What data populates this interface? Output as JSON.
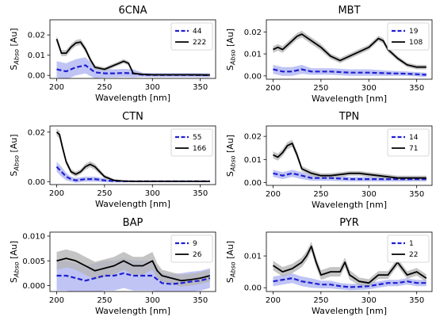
{
  "colors": {
    "mean_a": "#1f1fd1",
    "band_a": "#aab0f2",
    "mean_b": "#000000",
    "band_b": "#b5b5b5"
  },
  "chart_data": [
    {
      "type": "line",
      "title": "6CNA",
      "xlabel": "Wavelength [nm]",
      "ylabel": "S",
      "ylabel_sub": "Abso",
      "ylabel_unit": " [Au]",
      "xlim": [
        193,
        366
      ],
      "ylim": [
        -0.0015,
        0.0275
      ],
      "xticks": [
        200,
        250,
        300,
        350
      ],
      "yticks": [
        0.0,
        0.01,
        0.02
      ],
      "ytick_labels": [
        "0.00",
        "0.01",
        "0.02"
      ],
      "legend_position": "upper right",
      "series": [
        {
          "name": "44",
          "style": "dashed",
          "color": "#1f1fd1",
          "x": [
            200,
            210,
            220,
            230,
            240,
            250,
            260,
            270,
            280,
            290,
            300,
            320,
            340,
            360
          ],
          "y": [
            0.003,
            0.002,
            0.004,
            0.005,
            0.0015,
            0.001,
            0.001,
            0.0012,
            0.001,
            0.0003,
            0.0002,
            0.0002,
            0.0002,
            0.0001
          ],
          "band": [
            0.004,
            0.004,
            0.004,
            0.004,
            0.003,
            0.002,
            0.002,
            0.002,
            0.002,
            0.001,
            0.001,
            0.001,
            0.001,
            0.001
          ]
        },
        {
          "name": "222",
          "style": "solid",
          "color": "#000000",
          "x": [
            200,
            205,
            210,
            215,
            220,
            225,
            230,
            235,
            240,
            250,
            260,
            265,
            270,
            275,
            280,
            290,
            300,
            320,
            340,
            360
          ],
          "y": [
            0.018,
            0.011,
            0.011,
            0.014,
            0.016,
            0.0165,
            0.013,
            0.008,
            0.004,
            0.003,
            0.005,
            0.006,
            0.007,
            0.006,
            0.001,
            0.0005,
            0.0003,
            0.0003,
            0.0003,
            0.0002
          ],
          "band": [
            0.0015,
            0.0015,
            0.0015,
            0.0015,
            0.0015,
            0.0015,
            0.0015,
            0.0012,
            0.001,
            0.001,
            0.001,
            0.001,
            0.001,
            0.001,
            0.0008,
            0.0005,
            0.0005,
            0.0005,
            0.0005,
            0.0005
          ]
        }
      ]
    },
    {
      "type": "line",
      "title": "MBT",
      "xlabel": "Wavelength [nm]",
      "ylabel": "S",
      "ylabel_sub": "Abso",
      "ylabel_unit": " [Au]",
      "xlim": [
        193,
        366
      ],
      "ylim": [
        -0.0015,
        0.0255
      ],
      "xticks": [
        200,
        250,
        300,
        350
      ],
      "yticks": [
        0.0,
        0.01,
        0.02
      ],
      "ytick_labels": [
        "0.00",
        "0.01",
        "0.02"
      ],
      "legend_position": "upper right",
      "series": [
        {
          "name": "19",
          "style": "dashed",
          "color": "#1f1fd1",
          "x": [
            200,
            210,
            220,
            230,
            240,
            250,
            260,
            280,
            300,
            320,
            340,
            360
          ],
          "y": [
            0.003,
            0.002,
            0.002,
            0.003,
            0.002,
            0.002,
            0.002,
            0.0015,
            0.0015,
            0.0012,
            0.001,
            0.0005
          ],
          "band": [
            0.002,
            0.002,
            0.002,
            0.002,
            0.0015,
            0.0015,
            0.0015,
            0.0015,
            0.0015,
            0.0012,
            0.001,
            0.001
          ]
        },
        {
          "name": "108",
          "style": "solid",
          "color": "#000000",
          "x": [
            200,
            205,
            210,
            215,
            220,
            225,
            230,
            240,
            250,
            260,
            270,
            280,
            290,
            300,
            305,
            310,
            315,
            320,
            330,
            340,
            350,
            360
          ],
          "y": [
            0.012,
            0.013,
            0.012,
            0.014,
            0.016,
            0.018,
            0.019,
            0.016,
            0.013,
            0.009,
            0.007,
            0.009,
            0.011,
            0.013,
            0.015,
            0.017,
            0.016,
            0.012,
            0.008,
            0.005,
            0.004,
            0.004
          ],
          "band": [
            0.0015,
            0.0015,
            0.0015,
            0.0015,
            0.0015,
            0.0015,
            0.0015,
            0.0015,
            0.0015,
            0.0012,
            0.0012,
            0.0012,
            0.0012,
            0.0012,
            0.0012,
            0.0012,
            0.0012,
            0.0012,
            0.001,
            0.001,
            0.001,
            0.001
          ]
        }
      ]
    },
    {
      "type": "line",
      "title": "CTN",
      "xlabel": "Wavelength [nm]",
      "ylabel": "S",
      "ylabel_sub": "Abso",
      "ylabel_unit": " [Au]",
      "xlim": [
        193,
        366
      ],
      "ylim": [
        -0.0012,
        0.0225
      ],
      "xticks": [
        200,
        250,
        300,
        350
      ],
      "yticks": [
        0.0,
        0.02
      ],
      "ytick_labels": [
        "0.00",
        "0.02"
      ],
      "legend_position": "upper right",
      "series": [
        {
          "name": "55",
          "style": "dashed",
          "color": "#1f1fd1",
          "x": [
            200,
            205,
            210,
            215,
            220,
            230,
            240,
            250,
            260,
            280,
            300,
            320,
            340,
            360
          ],
          "y": [
            0.006,
            0.004,
            0.002,
            0.001,
            0.0005,
            0.001,
            0.001,
            0.0005,
            0.0002,
            0.0001,
            0.0001,
            0.0001,
            0.0001,
            0.0001
          ],
          "band": [
            0.002,
            0.002,
            0.0015,
            0.001,
            0.001,
            0.001,
            0.001,
            0.0008,
            0.0005,
            0.0003,
            0.0003,
            0.0003,
            0.0003,
            0.0003
          ]
        },
        {
          "name": "166",
          "style": "solid",
          "color": "#000000",
          "x": [
            200,
            203,
            206,
            210,
            215,
            220,
            225,
            230,
            235,
            240,
            245,
            250,
            260,
            270,
            280,
            300,
            320,
            340,
            360
          ],
          "y": [
            0.02,
            0.019,
            0.014,
            0.008,
            0.004,
            0.003,
            0.004,
            0.006,
            0.007,
            0.006,
            0.004,
            0.002,
            0.0005,
            0.0002,
            0.0001,
            0.0001,
            0.0001,
            0.0001,
            0.0001
          ],
          "band": [
            0.0015,
            0.0015,
            0.0015,
            0.001,
            0.001,
            0.001,
            0.001,
            0.0012,
            0.0012,
            0.0012,
            0.001,
            0.0008,
            0.0005,
            0.0003,
            0.0003,
            0.0003,
            0.0003,
            0.0003,
            0.0003
          ]
        }
      ]
    },
    {
      "type": "line",
      "title": "TPN",
      "xlabel": "Wavelength [nm]",
      "ylabel": "S",
      "ylabel_sub": "Abso",
      "ylabel_unit": " [Au]",
      "xlim": [
        193,
        366
      ],
      "ylim": [
        -0.0012,
        0.0245
      ],
      "xticks": [
        200,
        250,
        300,
        350
      ],
      "yticks": [
        0.0,
        0.01,
        0.02
      ],
      "ytick_labels": [
        "0.00",
        "0.01",
        "0.02"
      ],
      "legend_position": "upper right",
      "series": [
        {
          "name": "14",
          "style": "dashed",
          "color": "#1f1fd1",
          "x": [
            200,
            210,
            220,
            230,
            240,
            250,
            260,
            280,
            300,
            320,
            340,
            360
          ],
          "y": [
            0.004,
            0.003,
            0.004,
            0.003,
            0.002,
            0.002,
            0.002,
            0.0015,
            0.0015,
            0.0015,
            0.0015,
            0.0015
          ],
          "band": [
            0.0015,
            0.0015,
            0.0015,
            0.0015,
            0.0012,
            0.0012,
            0.0012,
            0.001,
            0.001,
            0.001,
            0.001,
            0.001
          ]
        },
        {
          "name": "71",
          "style": "solid",
          "color": "#000000",
          "x": [
            200,
            205,
            210,
            215,
            220,
            225,
            230,
            240,
            250,
            260,
            270,
            280,
            290,
            300,
            310,
            320,
            330,
            340,
            350,
            360
          ],
          "y": [
            0.012,
            0.011,
            0.013,
            0.016,
            0.017,
            0.012,
            0.006,
            0.004,
            0.003,
            0.003,
            0.0035,
            0.004,
            0.004,
            0.0035,
            0.003,
            0.0025,
            0.002,
            0.002,
            0.002,
            0.002
          ],
          "band": [
            0.0015,
            0.0015,
            0.0015,
            0.0015,
            0.0015,
            0.0015,
            0.0012,
            0.0012,
            0.001,
            0.001,
            0.001,
            0.001,
            0.001,
            0.001,
            0.001,
            0.001,
            0.001,
            0.001,
            0.001,
            0.001
          ]
        }
      ]
    },
    {
      "type": "line",
      "title": "BAP",
      "xlabel": "Wavelength [nm]",
      "ylabel": "S",
      "ylabel_sub": "Abso",
      "ylabel_unit": " [Au]",
      "xlim": [
        193,
        366
      ],
      "ylim": [
        -0.0012,
        0.0108
      ],
      "xticks": [
        200,
        250,
        300,
        350
      ],
      "yticks": [
        0.0,
        0.005,
        0.01
      ],
      "ytick_labels": [
        "0.000",
        "0.005",
        "0.010"
      ],
      "legend_position": "upper right",
      "series": [
        {
          "name": "9",
          "style": "dashed",
          "color": "#1f1fd1",
          "x": [
            200,
            210,
            220,
            230,
            240,
            250,
            260,
            270,
            280,
            290,
            300,
            310,
            320,
            330,
            340,
            350,
            360
          ],
          "y": [
            0.002,
            0.002,
            0.0015,
            0.001,
            0.0015,
            0.002,
            0.002,
            0.0025,
            0.002,
            0.002,
            0.002,
            0.0005,
            0.0003,
            0.0005,
            0.0008,
            0.001,
            0.0015
          ],
          "band": [
            0.003,
            0.003,
            0.003,
            0.003,
            0.003,
            0.003,
            0.003,
            0.003,
            0.003,
            0.003,
            0.003,
            0.002,
            0.002,
            0.002,
            0.002,
            0.002,
            0.002
          ]
        },
        {
          "name": "26",
          "style": "solid",
          "color": "#000000",
          "x": [
            200,
            210,
            220,
            230,
            240,
            250,
            260,
            270,
            280,
            290,
            300,
            305,
            310,
            320,
            330,
            340,
            350,
            360
          ],
          "y": [
            0.005,
            0.0055,
            0.005,
            0.004,
            0.003,
            0.0035,
            0.004,
            0.005,
            0.004,
            0.004,
            0.005,
            0.003,
            0.002,
            0.0015,
            0.001,
            0.0012,
            0.0015,
            0.002
          ],
          "band": [
            0.0018,
            0.0018,
            0.0018,
            0.0018,
            0.0018,
            0.0018,
            0.0018,
            0.0018,
            0.0018,
            0.0018,
            0.0018,
            0.0015,
            0.0012,
            0.0012,
            0.0012,
            0.0012,
            0.0012,
            0.0012
          ]
        }
      ]
    },
    {
      "type": "line",
      "title": "PYR",
      "xlabel": "Wavelength [nm]",
      "ylabel": "S",
      "ylabel_sub": "Abso",
      "ylabel_unit": " [Au]",
      "xlim": [
        193,
        366
      ],
      "ylim": [
        -0.0012,
        0.0175
      ],
      "xticks": [
        200,
        250,
        300,
        350
      ],
      "yticks": [
        0.0,
        0.01
      ],
      "ytick_labels": [
        "0.00",
        "0.01"
      ],
      "legend_position": "upper right",
      "series": [
        {
          "name": "1",
          "style": "dashed",
          "color": "#1f1fd1",
          "x": [
            200,
            210,
            220,
            230,
            240,
            250,
            260,
            270,
            280,
            290,
            300,
            310,
            320,
            330,
            340,
            350,
            360
          ],
          "y": [
            0.002,
            0.0025,
            0.003,
            0.002,
            0.0015,
            0.001,
            0.001,
            0.0005,
            0.0002,
            0.0003,
            0.0005,
            0.001,
            0.0015,
            0.0015,
            0.002,
            0.0015,
            0.0015
          ],
          "band": [
            0.0015,
            0.0015,
            0.0015,
            0.0015,
            0.0015,
            0.0012,
            0.0012,
            0.001,
            0.001,
            0.001,
            0.001,
            0.001,
            0.001,
            0.001,
            0.001,
            0.001,
            0.001
          ]
        },
        {
          "name": "22",
          "style": "solid",
          "color": "#000000",
          "x": [
            200,
            210,
            220,
            230,
            235,
            240,
            245,
            250,
            260,
            270,
            275,
            280,
            290,
            300,
            310,
            320,
            325,
            330,
            340,
            350,
            360
          ],
          "y": [
            0.007,
            0.005,
            0.006,
            0.008,
            0.01,
            0.013,
            0.008,
            0.004,
            0.005,
            0.005,
            0.008,
            0.004,
            0.002,
            0.0015,
            0.004,
            0.004,
            0.006,
            0.008,
            0.004,
            0.005,
            0.003
          ],
          "band": [
            0.0015,
            0.0015,
            0.0015,
            0.0015,
            0.0015,
            0.0015,
            0.0015,
            0.0015,
            0.0015,
            0.0015,
            0.0015,
            0.0015,
            0.0012,
            0.0012,
            0.0012,
            0.0012,
            0.0012,
            0.0012,
            0.0012,
            0.0012,
            0.0012
          ]
        }
      ]
    }
  ]
}
